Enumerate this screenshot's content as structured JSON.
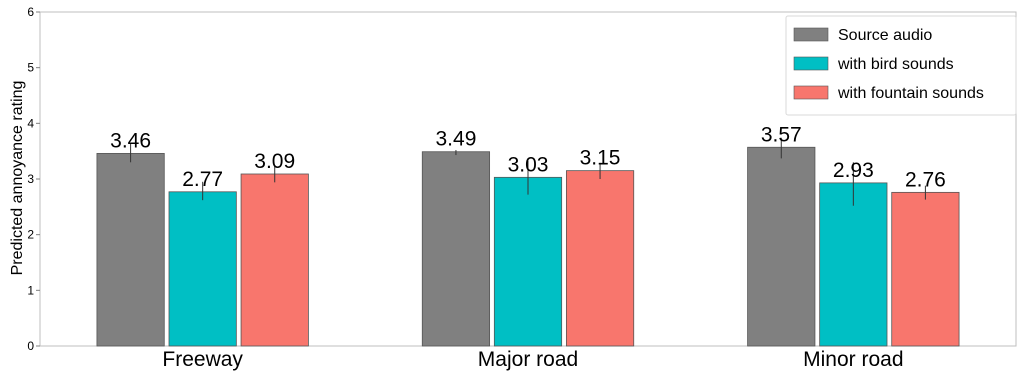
{
  "chart_data": {
    "type": "bar",
    "title": "",
    "xlabel": "",
    "ylabel": "Predicted annoyance rating",
    "ylim": [
      0,
      6
    ],
    "yticks": [
      "0",
      "1",
      "2",
      "3",
      "4",
      "5",
      "6"
    ],
    "categories": [
      "Freeway",
      "Major road",
      "Minor road"
    ],
    "series": [
      {
        "name": "Source audio",
        "color": "#808080",
        "values": [
          3.46,
          3.49,
          3.57
        ],
        "labels": [
          "3.46",
          "3.49",
          "3.57"
        ],
        "err": [
          [
            3.3,
            3.63
          ],
          [
            3.43,
            3.52
          ],
          [
            3.37,
            3.74
          ]
        ]
      },
      {
        "name": "with bird sounds",
        "color": "#00BFC4",
        "values": [
          2.77,
          3.03,
          2.93
        ],
        "labels": [
          "2.77",
          "3.03",
          "2.93"
        ],
        "err": [
          [
            2.62,
            2.95
          ],
          [
            2.72,
            3.33
          ],
          [
            2.52,
            3.3
          ]
        ]
      },
      {
        "name": "with fountain sounds",
        "color": "#F8766D",
        "values": [
          3.09,
          3.15,
          2.76
        ],
        "labels": [
          "3.09",
          "3.15",
          "2.76"
        ],
        "err": [
          [
            2.94,
            3.24
          ],
          [
            3.0,
            3.29
          ],
          [
            2.63,
            2.88
          ]
        ]
      }
    ],
    "grid": false,
    "legend_position": "top-right"
  }
}
